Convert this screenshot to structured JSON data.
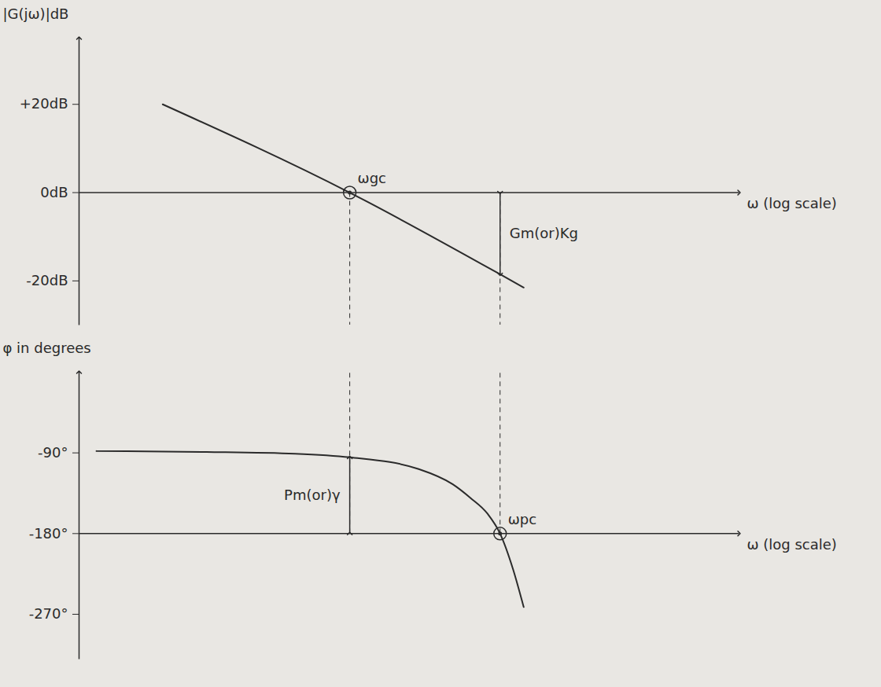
{
  "chart_data": [
    {
      "type": "line",
      "y_label": "|G(jω)|dB",
      "x_label": "ω (log scale)",
      "log": "x",
      "grid": false,
      "tick_labels": "y",
      "xlim": [
        0.1,
        100
      ],
      "xticks": [],
      "ylim": [
        -30,
        35
      ],
      "yticks": [
        {
          "value": 20,
          "label": "+20dB"
        },
        {
          "value": 0,
          "label": "0dB"
        },
        {
          "value": -20,
          "label": "-20dB"
        }
      ],
      "baseline": 0,
      "x": [
        0.24,
        1.7,
        8.2,
        10.5
      ],
      "series": [
        {
          "color": "#2b2b2b",
          "line_style": "solid",
          "values": [
            20,
            0,
            -18.5,
            -21.5
          ]
        }
      ],
      "annotations": [
        {
          "text": "ωgc",
          "x": 1.7,
          "y": 0,
          "marker": "circle"
        },
        {
          "text": "Gm(or)Kg",
          "x": 8.2,
          "y": [
            0,
            -18.5
          ]
        }
      ]
    },
    {
      "type": "line",
      "y_label": "φ in degrees",
      "x_label": "ω (log scale)",
      "log": "x",
      "grid": false,
      "tick_labels": "y",
      "xlim": [
        0.1,
        100
      ],
      "xticks": [],
      "ylim": [
        -320,
        0
      ],
      "yticks": [
        {
          "value": -90,
          "label": "-90°"
        },
        {
          "value": -180,
          "label": "-180°"
        },
        {
          "value": -270,
          "label": "-270°"
        }
      ],
      "baseline": -180,
      "x": [
        0.12,
        0.38,
        0.96,
        1.7,
        3.5,
        5.0,
        6.0,
        7.2,
        8.2,
        9.4,
        10.5
      ],
      "series": [
        {
          "color": "#2b2b2b",
          "line_style": "solid",
          "values": [
            -88,
            -89,
            -91,
            -95,
            -108,
            -125,
            -140,
            -158,
            -180,
            -220,
            -262
          ]
        }
      ],
      "annotations": [
        {
          "text": "ωpc",
          "x": 8.2,
          "y": -180,
          "marker": "circle"
        },
        {
          "text": "Pm(or)γ",
          "x": 1.7,
          "y": [
            -180,
            -95
          ]
        }
      ]
    }
  ]
}
